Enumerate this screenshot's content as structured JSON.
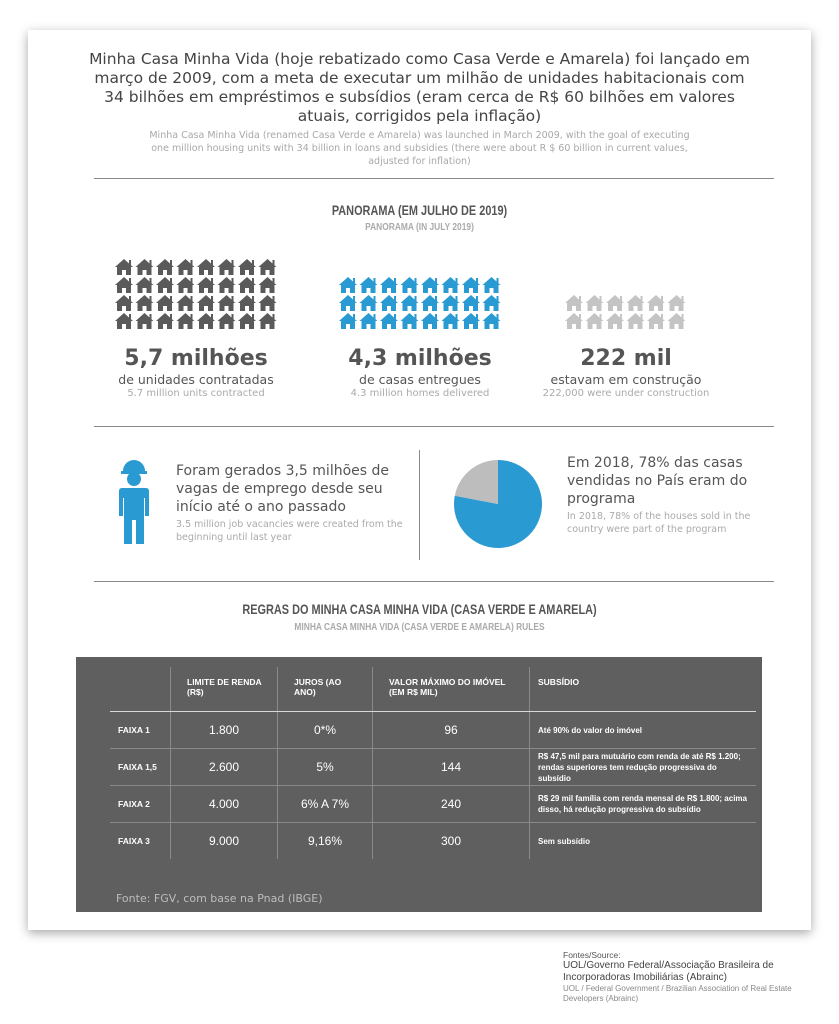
{
  "intro": {
    "pt": "Minha Casa Minha Vida (hoje rebatizado como Casa Verde e Amarela) foi lançado em março de 2009, com a meta de executar um milhão de unidades habitacionais com 34 bilhões em empréstimos e subsídios (eram cerca de R$ 60 bilhões em valores atuais, corrigidos pela inflação)",
    "en": "Minha Casa Minha Vida (renamed Casa Verde e Amarela) was launched in March 2009, with the goal of executing one million housing units with 34 billion in loans and subsidies (there were about R $ 60 billion in current values, adjusted for inflation)"
  },
  "panorama": {
    "title": "PANORAMA (EM JULHO DE 2019)",
    "subtitle": "PANORAMA (IN JULY 2019)",
    "stats": [
      {
        "big": "5,7 milhões",
        "pt": "de unidades contratadas",
        "en": "5.7 million units contracted",
        "color": "#5a5a5a"
      },
      {
        "big": "4,3 milhões",
        "pt": "de casas entregues",
        "en": "4.3 million homes delivered",
        "color": "#2a9ad2"
      },
      {
        "big": "222 mil",
        "pt": "estavam em construção",
        "en": "222,000 were under construction",
        "color": "#c4c4c4"
      }
    ]
  },
  "facts": {
    "jobs_pt": "Foram gerados 3,5 milhões de vagas de emprego desde seu início até o ano passado",
    "jobs_en": "3.5 million job vacancies were created from the beginning until last year",
    "share_pt": "Em 2018, 78% das casas vendidas no País eram do programa",
    "share_en": "In 2018, 78% of the houses sold in the country were part of the program",
    "share_value": 78,
    "icons": [
      "worker-icon",
      "pie-chart"
    ]
  },
  "rules": {
    "title": "REGRAS DO MINHA CASA MINHA VIDA (CASA VERDE E AMARELA)",
    "subtitle": "MINHA CASA MINHA VIDA (CASA VERDE E AMARELA) RULES",
    "headers": {
      "renda": "LIMITE DE RENDA (R$)",
      "juros": "JUROS (AO ANO)",
      "valor": "VALOR MÁXIMO DO IMÓVEL (EM R$ MIL)",
      "subsidio": "SUBSÍDIO"
    },
    "rows": [
      {
        "faixa": "FAIXA 1",
        "renda": "1.800",
        "juros": "0*%",
        "valor": "96",
        "subsidio": "Até 90% do valor do imóvel"
      },
      {
        "faixa": "FAIXA 1,5",
        "renda": "2.600",
        "juros": "5%",
        "valor": "144",
        "subsidio": "R$ 47,5 mil para mutuário com renda de até R$ 1.200; rendas superiores tem redução progressiva do subsídio"
      },
      {
        "faixa": "FAIXA 2",
        "renda": "4.000",
        "juros": "6% A 7%",
        "valor": "240",
        "subsidio": "R$ 29 mil família com renda mensal de R$ 1.800; acima disso, há redução progressiva do subsídio"
      },
      {
        "faixa": "FAIXA 3",
        "renda": "9.000",
        "juros": "9,16%",
        "valor": "300",
        "subsidio": "Sem subsídio"
      }
    ],
    "fonte": "Fonte: FGV, com base na Pnad (IBGE)"
  },
  "sources": {
    "label": "Fontes/Source:",
    "pt": "UOL/Governo Federal/Associação Brasileira de Incorporadoras Imobiliárias (Abrainc)",
    "en": "UOL / Federal Government / Brazilian Association of Real Estate Developers (Abrainc)"
  }
}
